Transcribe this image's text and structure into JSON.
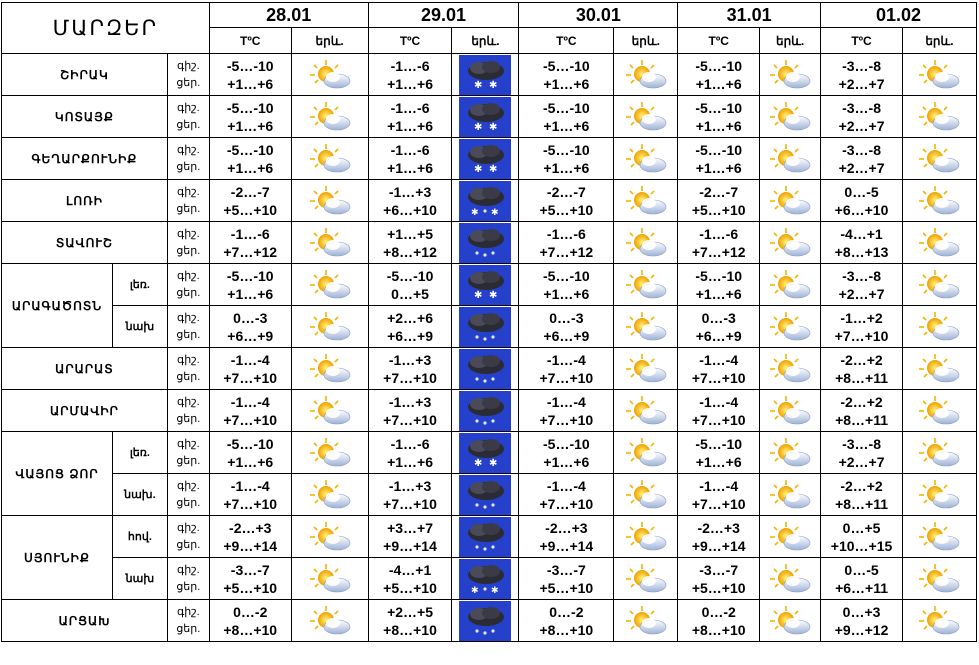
{
  "header": {
    "title": "ՄԱՐԶԵՐ",
    "temp_label": "TºC",
    "weather_label": "երև.",
    "dates": [
      "28.01",
      "29.01",
      "30.01",
      "31.01",
      "01.02"
    ]
  },
  "colors": {
    "sky": "#1a33c8",
    "cloud_dark": "#2a2a3a",
    "sun": "#ffcc00"
  },
  "rows": [
    {
      "region": "ՇԻՐԱԿ",
      "sub": "",
      "span": 1,
      "day_label": "գիշ.",
      "night_label": "ցեր.",
      "cells": [
        {
          "night": "-5…-10",
          "day": "+1…+6",
          "icon": "sun-cloud-icon"
        },
        {
          "night": "-1…-6",
          "day": "+1…+6",
          "icon": "snow-cloud-icon"
        },
        {
          "night": "-5…-10",
          "day": "+1…+6",
          "icon": "sun-cloud-icon"
        },
        {
          "night": "-5…-10",
          "day": "+1…+6",
          "icon": "sun-cloud-icon"
        },
        {
          "night": "-3…-8",
          "day": "+2…+7",
          "icon": "sun-cloud-icon"
        }
      ]
    },
    {
      "region": "ԿՈՏԱՅՔ",
      "sub": "",
      "span": 1,
      "day_label": "գիշ.",
      "night_label": "ցեր.",
      "cells": [
        {
          "night": "-5…-10",
          "day": "+1…+6",
          "icon": "sun-cloud-icon"
        },
        {
          "night": "-1…-6",
          "day": "+1…+6",
          "icon": "snow-cloud-icon"
        },
        {
          "night": "-5…-10",
          "day": "+1…+6",
          "icon": "sun-cloud-icon"
        },
        {
          "night": "-5…-10",
          "day": "+1…+6",
          "icon": "sun-cloud-icon"
        },
        {
          "night": "-3…-8",
          "day": "+2…+7",
          "icon": "sun-cloud-icon"
        }
      ]
    },
    {
      "region": "ԳԵՂԱՐՔՈՒՆԻՔ",
      "sub": "",
      "span": 1,
      "day_label": "գիշ.",
      "night_label": "ցեր.",
      "cells": [
        {
          "night": "-5…-10",
          "day": "+1…+6",
          "icon": "sun-cloud-icon"
        },
        {
          "night": "-1…-6",
          "day": "+1…+6",
          "icon": "snow-cloud-icon"
        },
        {
          "night": "-5…-10",
          "day": "+1…+6",
          "icon": "sun-cloud-icon"
        },
        {
          "night": "-5…-10",
          "day": "+1…+6",
          "icon": "sun-cloud-icon"
        },
        {
          "night": "-3…-8",
          "day": "+2…+7",
          "icon": "sun-cloud-icon"
        }
      ]
    },
    {
      "region": "ԼՈՌԻ",
      "sub": "",
      "span": 1,
      "day_label": "գիշ.",
      "night_label": "ցեր.",
      "cells": [
        {
          "night": "-2…-7",
          "day": "+5…+10",
          "icon": "sun-cloud-icon"
        },
        {
          "night": "-1…+3",
          "day": "+6…+10",
          "icon": "rain-snow-cloud-icon"
        },
        {
          "night": "-2…-7",
          "day": "+5…+10",
          "icon": "sun-cloud-icon"
        },
        {
          "night": "-2…-7",
          "day": "+5…+10",
          "icon": "sun-cloud-icon"
        },
        {
          "night": "0…-5",
          "day": "+6…+10",
          "icon": "sun-cloud-icon"
        }
      ]
    },
    {
      "region": "ՏԱՎՈՒՇ",
      "sub": "",
      "span": 1,
      "day_label": "գիշ.",
      "night_label": "ցեր.",
      "cells": [
        {
          "night": "-1…-6",
          "day": "+7…+12",
          "icon": "sun-cloud-icon"
        },
        {
          "night": "+1…+5",
          "day": "+8…+12",
          "icon": "rain-cloud-icon"
        },
        {
          "night": "-1…-6",
          "day": "+7…+12",
          "icon": "sun-cloud-icon"
        },
        {
          "night": "-1…-6",
          "day": "+7…+12",
          "icon": "sun-cloud-icon"
        },
        {
          "night": "-4…+1",
          "day": "+8…+13",
          "icon": "sun-cloud-icon"
        }
      ]
    },
    {
      "region": "ԱՐԱԳԱԾՈՏՆ",
      "sub": "լեռ.",
      "span": 2,
      "day_label": "գիշ.",
      "night_label": "ցեր.",
      "cells": [
        {
          "night": "-5…-10",
          "day": "+1…+6",
          "icon": "sun-cloud-icon"
        },
        {
          "night": "-5…-10",
          "day": "0…+5",
          "icon": "snow-cloud-icon"
        },
        {
          "night": "-5…-10",
          "day": "+1…+6",
          "icon": "sun-cloud-icon"
        },
        {
          "night": "-5…-10",
          "day": "+1…+6",
          "icon": "sun-cloud-icon"
        },
        {
          "night": "-3…-8",
          "day": "+2…+7",
          "icon": "sun-cloud-icon"
        }
      ]
    },
    {
      "region": "",
      "sub": "նախ",
      "span": 0,
      "day_label": "գիշ.",
      "night_label": "ցեր.",
      "cells": [
        {
          "night": "0…-3",
          "day": "+6…+9",
          "icon": "sun-cloud-icon"
        },
        {
          "night": "+2…+6",
          "day": "+6…+9",
          "icon": "rain-cloud-icon"
        },
        {
          "night": "0…-3",
          "day": "+6…+9",
          "icon": "sun-cloud-icon"
        },
        {
          "night": "0…-3",
          "day": "+6…+9",
          "icon": "sun-cloud-icon"
        },
        {
          "night": "-1…+2",
          "day": "+7…+10",
          "icon": "sun-cloud-icon"
        }
      ]
    },
    {
      "region": "ԱՐԱՐԱՏ",
      "sub": "",
      "span": 1,
      "day_label": "գիշ.",
      "night_label": "ցեր.",
      "cells": [
        {
          "night": "-1…-4",
          "day": "+7…+10",
          "icon": "sun-cloud-icon"
        },
        {
          "night": "-1…+3",
          "day": "+7…+10",
          "icon": "rain-cloud-icon"
        },
        {
          "night": "-1…-4",
          "day": "+7…+10",
          "icon": "sun-cloud-icon"
        },
        {
          "night": "-1…-4",
          "day": "+7…+10",
          "icon": "sun-cloud-icon"
        },
        {
          "night": "-2…+2",
          "day": "+8…+11",
          "icon": "sun-cloud-icon"
        }
      ]
    },
    {
      "region": "ԱՐՄԱՎԻՐ",
      "sub": "",
      "span": 1,
      "day_label": "գիշ.",
      "night_label": "ցեր.",
      "cells": [
        {
          "night": "-1…-4",
          "day": "+7…+10",
          "icon": "sun-cloud-icon"
        },
        {
          "night": "-1…+3",
          "day": "+7…+10",
          "icon": "rain-cloud-icon"
        },
        {
          "night": "-1…-4",
          "day": "+7…+10",
          "icon": "sun-cloud-icon"
        },
        {
          "night": "-1…-4",
          "day": "+7…+10",
          "icon": "sun-cloud-icon"
        },
        {
          "night": "-2…+2",
          "day": "+8…+11",
          "icon": "sun-cloud-icon"
        }
      ]
    },
    {
      "region": "ՎԱՅՈՑ ՁՈՐ",
      "sub": "լեռ.",
      "span": 2,
      "day_label": "գիշ.",
      "night_label": "ցեր.",
      "cells": [
        {
          "night": "-5…-10",
          "day": "+1…+6",
          "icon": "sun-cloud-icon"
        },
        {
          "night": "-1…-6",
          "day": "+1…+6",
          "icon": "snow-cloud-icon"
        },
        {
          "night": "-5…-10",
          "day": "+1…+6",
          "icon": "sun-cloud-icon"
        },
        {
          "night": "-5…-10",
          "day": "+1…+6",
          "icon": "sun-cloud-icon"
        },
        {
          "night": "-3…-8",
          "day": "+2…+7",
          "icon": "sun-cloud-icon"
        }
      ]
    },
    {
      "region": "",
      "sub": "նախ.",
      "span": 0,
      "day_label": "գիշ.",
      "night_label": "ցեր.",
      "cells": [
        {
          "night": "-1…-4",
          "day": "+7…+10",
          "icon": "sun-cloud-icon"
        },
        {
          "night": "-1…+3",
          "day": "+7…+10",
          "icon": "rain-cloud-icon"
        },
        {
          "night": "-1…-4",
          "day": "+7…+10",
          "icon": "sun-cloud-icon"
        },
        {
          "night": "-1…-4",
          "day": "+7…+10",
          "icon": "sun-cloud-icon"
        },
        {
          "night": "-2…+2",
          "day": "+8…+11",
          "icon": "sun-cloud-icon"
        }
      ]
    },
    {
      "region": "ՍՅՈՒՆԻՔ",
      "sub": "հով.",
      "span": 2,
      "day_label": "գիշ.",
      "night_label": "ցեր.",
      "cells": [
        {
          "night": "-2…+3",
          "day": "+9…+14",
          "icon": "sun-cloud-icon"
        },
        {
          "night": "+3…+7",
          "day": "+9…+14",
          "icon": "rain-cloud-icon"
        },
        {
          "night": "-2…+3",
          "day": "+9…+14",
          "icon": "sun-cloud-icon"
        },
        {
          "night": "-2…+3",
          "day": "+9…+14",
          "icon": "sun-cloud-icon"
        },
        {
          "night": "0…+5",
          "day": "+10…+15",
          "icon": "sun-cloud-icon"
        }
      ]
    },
    {
      "region": "",
      "sub": "նախ",
      "span": 0,
      "day_label": "գիշ.",
      "night_label": "ցեր.",
      "cells": [
        {
          "night": "-3…-7",
          "day": "+5…+10",
          "icon": "sun-cloud-icon"
        },
        {
          "night": "-4…+1",
          "day": "+5…+10",
          "icon": "rain-snow-cloud-icon"
        },
        {
          "night": "-3…-7",
          "day": "+5…+10",
          "icon": "sun-cloud-icon"
        },
        {
          "night": "-3…-7",
          "day": "+5…+10",
          "icon": "sun-cloud-icon"
        },
        {
          "night": "0…-5",
          "day": "+6…+11",
          "icon": "sun-cloud-icon"
        }
      ]
    },
    {
      "region": "ԱՐՑԱԽ",
      "sub": "",
      "span": 1,
      "day_label": "գիշ.",
      "night_label": "ցեր.",
      "cells": [
        {
          "night": "0…-2",
          "day": "+8…+10",
          "icon": "sun-cloud-icon"
        },
        {
          "night": "+2…+5",
          "day": "+8…+10",
          "icon": "rain-cloud-icon"
        },
        {
          "night": "0…-2",
          "day": "+8…+10",
          "icon": "sun-cloud-icon"
        },
        {
          "night": "0…-2",
          "day": "+8…+10",
          "icon": "sun-cloud-icon"
        },
        {
          "night": "0…+3",
          "day": "+9…+12",
          "icon": "sun-cloud-icon"
        }
      ]
    }
  ]
}
